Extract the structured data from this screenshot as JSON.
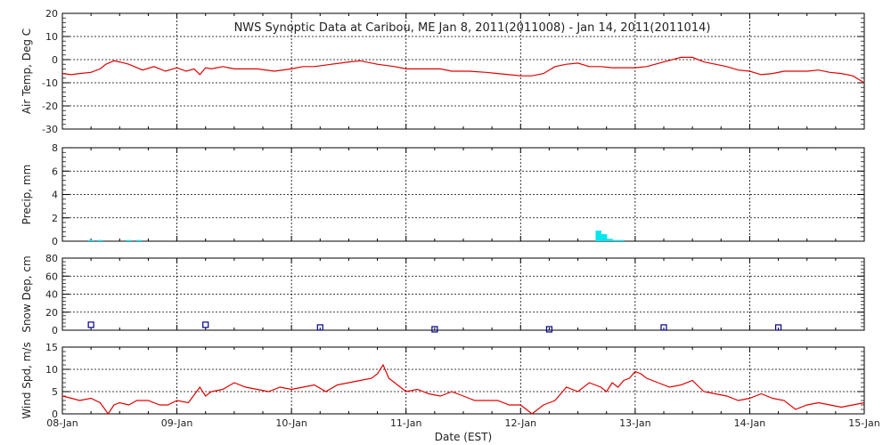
{
  "chart_data": [
    {
      "type": "line",
      "title": "NWS Synoptic Data at Caribou, ME   Jan  8, 2011(2011008) - Jan 14, 2011(2011014)",
      "ylabel": "Air Temp, Deg C",
      "ylim": [
        -30,
        20
      ],
      "yticks": [
        -30,
        -20,
        -10,
        0,
        10,
        20
      ],
      "grid": true,
      "color": "#e00000",
      "series": [
        {
          "x": [
            0.0,
            0.08,
            0.15,
            0.25,
            0.33,
            0.38,
            0.45,
            0.5,
            0.58,
            0.7,
            0.8,
            0.9,
            1.0,
            1.08,
            1.15,
            1.2,
            1.25,
            1.3,
            1.4,
            1.5,
            1.7,
            1.85,
            2.0,
            2.1,
            2.2,
            2.35,
            2.5,
            2.6,
            2.75,
            2.9,
            3.0,
            3.15,
            3.3,
            3.4,
            3.55,
            3.7,
            3.8,
            3.9,
            4.0,
            4.1,
            4.2,
            4.3,
            4.4,
            4.5,
            4.6,
            4.7,
            4.8,
            4.9,
            5.0,
            5.1,
            5.25,
            5.4,
            5.5,
            5.6,
            5.7,
            5.8,
            5.9,
            6.0,
            6.1,
            6.2,
            6.3,
            6.4,
            6.5,
            6.6,
            6.7,
            6.8,
            6.9,
            7.0
          ],
          "values": [
            -6,
            -6.5,
            -6,
            -5.5,
            -4,
            -2,
            -0.5,
            -1,
            -2,
            -4.5,
            -3,
            -5,
            -3.5,
            -5,
            -4,
            -6.5,
            -3.5,
            -4,
            -3,
            -4,
            -4,
            -5,
            -4,
            -3,
            -3,
            -2,
            -1,
            -0.5,
            -2,
            -3,
            -4,
            -4,
            -4,
            -5,
            -5,
            -5.5,
            -6,
            -6.5,
            -7,
            -7,
            -6,
            -3,
            -2,
            -1.5,
            -3,
            -3,
            -3.5,
            -3.5,
            -3.5,
            -3,
            -1,
            1,
            1,
            -1,
            -2,
            -3,
            -4.5,
            -5,
            -6.5,
            -6,
            -5,
            -5,
            -5,
            -4.5,
            -5.5,
            -6,
            -7,
            -10
          ]
        }
      ]
    },
    {
      "type": "bar",
      "ylabel": "Precip, mm",
      "ylim": [
        0,
        8
      ],
      "yticks": [
        0,
        2,
        4,
        6,
        8
      ],
      "grid": true,
      "color": "#00e5ee",
      "x": [
        0.25,
        0.33,
        0.58,
        0.67,
        4.68,
        4.73,
        4.78,
        4.83,
        4.88
      ],
      "values": [
        0.1,
        0.1,
        0.1,
        0.1,
        0.9,
        0.6,
        0.2,
        0.1,
        0.1
      ]
    },
    {
      "type": "scatter",
      "ylabel": "Snow Dep, cm",
      "ylim": [
        0,
        80
      ],
      "yticks": [
        0,
        20,
        40,
        60,
        80
      ],
      "grid": true,
      "color": "#00008b",
      "x": [
        0.25,
        1.25,
        2.25,
        3.25,
        4.25,
        5.25,
        6.25
      ],
      "values": [
        6,
        6,
        3,
        1,
        1,
        3,
        3
      ]
    },
    {
      "type": "line",
      "ylabel": "Wind Spd, m/s",
      "xlabel": "Date (EST)",
      "ylim": [
        0,
        15
      ],
      "yticks": [
        0,
        5,
        10,
        15
      ],
      "grid": true,
      "color": "#e00000",
      "x_ticks": [
        "08-Jan",
        "09-Jan",
        "10-Jan",
        "11-Jan",
        "12-Jan",
        "13-Jan",
        "14-Jan",
        "15-Jan"
      ],
      "series": [
        {
          "x": [
            0.0,
            0.08,
            0.15,
            0.25,
            0.33,
            0.4,
            0.45,
            0.5,
            0.58,
            0.65,
            0.75,
            0.85,
            0.92,
            1.0,
            1.1,
            1.2,
            1.25,
            1.3,
            1.4,
            1.5,
            1.6,
            1.7,
            1.8,
            1.9,
            2.0,
            2.1,
            2.2,
            2.3,
            2.4,
            2.5,
            2.6,
            2.7,
            2.75,
            2.8,
            2.85,
            2.9,
            2.95,
            3.0,
            3.1,
            3.2,
            3.3,
            3.4,
            3.5,
            3.6,
            3.7,
            3.8,
            3.9,
            4.0,
            4.05,
            4.1,
            4.2,
            4.3,
            4.4,
            4.5,
            4.6,
            4.7,
            4.75,
            4.8,
            4.85,
            4.9,
            4.95,
            5.0,
            5.05,
            5.1,
            5.2,
            5.3,
            5.4,
            5.5,
            5.6,
            5.7,
            5.8,
            5.9,
            6.0,
            6.1,
            6.2,
            6.3,
            6.4,
            6.5,
            6.6,
            6.7,
            6.8,
            6.9,
            7.0
          ],
          "values": [
            4,
            3.5,
            3,
            3.5,
            2.5,
            0,
            2,
            2.5,
            2,
            3,
            3,
            2,
            2,
            3,
            2.5,
            6,
            4,
            5,
            5.5,
            7,
            6,
            5.5,
            5,
            6,
            5.5,
            6,
            6.5,
            5,
            6.5,
            7,
            7.5,
            8,
            9,
            11,
            8,
            7,
            6,
            5,
            5.5,
            4.5,
            4,
            5,
            4,
            3,
            3,
            3,
            2,
            2,
            1,
            0,
            2,
            3,
            6,
            5,
            7,
            6,
            5,
            7,
            6,
            7.5,
            8,
            9.5,
            9,
            8,
            7,
            6,
            6.5,
            7.5,
            5,
            4.5,
            4,
            3,
            3.5,
            4.5,
            3.5,
            3,
            1,
            2,
            2.5,
            2,
            1.5,
            2,
            2.5
          ]
        }
      ]
    }
  ]
}
